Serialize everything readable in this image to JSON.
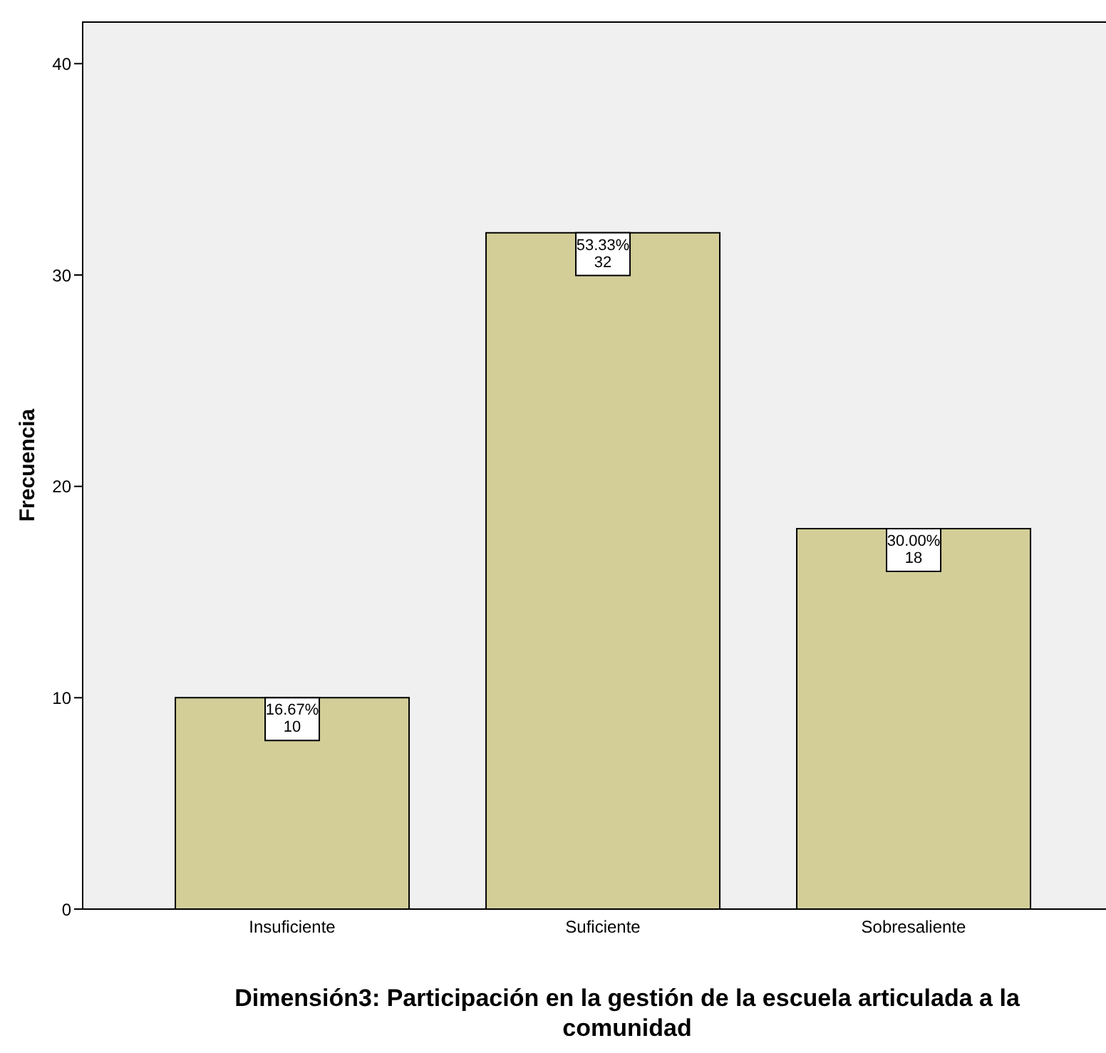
{
  "chart_data": {
    "type": "bar",
    "xlabel": "Dimensión3: Participación en la gestión de la escuela articulada a la comunidad",
    "ylabel": "Frecuencia",
    "categories": [
      "Insuficiente",
      "Suficiente",
      "Sobresaliente"
    ],
    "values": [
      10,
      32,
      18
    ],
    "value_labels": [
      "16.67%\n10",
      "53.33%\n32",
      "30.00%\n18"
    ],
    "color": "#d3ce98",
    "ylim": [
      0,
      42
    ],
    "yticks": [
      0,
      10,
      20,
      30,
      40
    ],
    "grid": false
  }
}
